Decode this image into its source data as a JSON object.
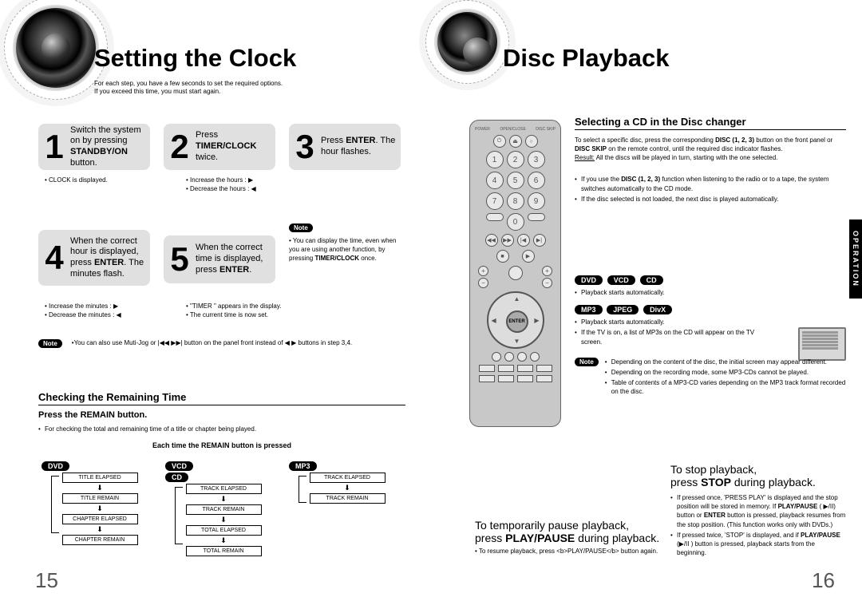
{
  "left": {
    "title": "Setting the Clock",
    "intro_lines": [
      "For each step, you have a few seconds to set the required options.",
      "If you exceed this time, you must start again."
    ],
    "steps": {
      "s1": {
        "num": "1",
        "html": "Switch the system on by pressing <b>STANDBY/ON</b> button.",
        "sub": "• CLOCK  is displayed."
      },
      "s2": {
        "num": "2",
        "html": "Press <b>TIMER/CLOCK</b> twice.",
        "sub1": "• Increase the hours :",
        "sub2": "• Decrease the hours :"
      },
      "s3": {
        "num": "3",
        "html": "Press <b>ENTER</b>. The hour flashes."
      },
      "s4": {
        "num": "4",
        "html": "When the correct hour is displayed, press <b>ENTER</b>. The minutes flash.",
        "sub1": "• Increase the minutes :",
        "sub2": "• Decrease the minutes :"
      },
      "s5": {
        "num": "5",
        "html": "When the correct time is displayed, press <b>ENTER</b>.",
        "sub1": "• \"TIMER \" appears in the display.",
        "sub2": "• The current time is now set."
      },
      "note_box": "• You can display the time, even when you are using another function, by pressing <b>TIMER/CLOCK</b> once."
    },
    "bottom_note": "•You can also  use Muti-Jog or |◀◀  ▶▶|  button on the panel front instead of   ◀   ▶  buttons in step 3,4.",
    "remain": {
      "heading": "Checking the Remaining Time",
      "sub": "Press the REMAIN button.",
      "bullet": "For checking the total and remaining time of a title or chapter being played.",
      "each": "Each time the REMAIN button is pressed",
      "cols": {
        "c1": {
          "tags": [
            "DVD"
          ],
          "seq": [
            "TITLE ELAPSED",
            "TITLE REMAIN",
            "CHAPTER ELAPSED",
            "CHAPTER REMAIN"
          ]
        },
        "c2": {
          "tags": [
            "VCD",
            "CD"
          ],
          "seq": [
            "TRACK ELAPSED",
            "TRACK REMAIN",
            "TOTAL ELAPSED",
            "TOTAL REMAIN"
          ]
        },
        "c3": {
          "tags": [
            "MP3"
          ],
          "seq": [
            "TRACK ELAPSED",
            "TRACK REMAIN"
          ]
        }
      }
    },
    "page_num": "15"
  },
  "right": {
    "title": "Disc Playback",
    "selecting": {
      "heading": "Selecting a CD in the Disc changer",
      "intro": "To select a specific disc, press the corresponding <b>DISC (1, 2, 3)</b> button on the front panel or <b>DISC SKIP</b> on the remote control, until the required disc indicator flashes.",
      "result_label": "Result:",
      "result": "All the discs will be played in turn, starting with the one selected.",
      "b1": "If you use the <b>DISC (1, 2, 3)</b> function when listening to the radio or to a tape, the system switches automatically to the CD mode.",
      "b2": "If the disc selected is not loaded, the next disc is played automatically."
    },
    "playback": {
      "tags1": [
        "DVD",
        "VCD",
        "CD"
      ],
      "line1": "Playback starts automatically.",
      "tags2": [
        "MP3",
        "JPEG",
        "DivX"
      ],
      "line2a": "Playback starts automatically.",
      "line2b": "If the TV is on, a list of MP3s on the CD will appear on the TV screen.",
      "note1": "Depending on the content of the disc, the initial screen may appear different.",
      "note2": "Depending on the recording mode, some MP3-CDs cannot be played.",
      "note3": "Table of contents of a MP3-CD varies depending on the MP3 track format recorded on the disc."
    },
    "pause": {
      "heading1": "To temporarily pause playback,",
      "heading2": "press <b>PLAY/PAUSE</b> during playback.",
      "sub": "• To resume playback, press <b>PLAY/PAUSE</b> button again."
    },
    "stop": {
      "heading1": "To stop playback,",
      "heading2": "press <b>STOP</b> during playback.",
      "b1": "If pressed once, 'PRESS PLAY' is displayed and the stop position will be stored in memory. If <b>PLAY/PAUSE</b> (  ▶/II) button or <b>ENTER</b> button is pressed, playback resumes from the stop position. (This function works only with DVDs.)",
      "b2": "If pressed twice, 'STOP' is displayed, and if <b>PLAY/PAUSE</b> (▶/II ) button is pressed, playback starts from the beginning."
    },
    "side_tab": "OPERATION",
    "page_num": "16",
    "remote": {
      "labels": [
        "POWER",
        "OPEN/CLOSE",
        "DISC SKIP"
      ],
      "numbers": [
        "1",
        "2",
        "3",
        "4",
        "5",
        "6",
        "7",
        "8",
        "9",
        "0"
      ],
      "enter": "ENTER"
    }
  }
}
